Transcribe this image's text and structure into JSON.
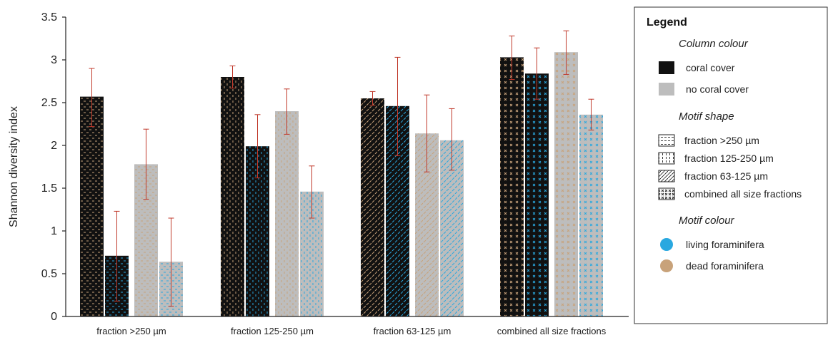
{
  "chart_data": {
    "type": "bar",
    "ylabel": "Shannon diversity index",
    "ylim": [
      0,
      3.5
    ],
    "yticks": [
      "0",
      "0.5",
      "1",
      "1.5",
      "2",
      "2.5",
      "3",
      "3.5"
    ],
    "categories": [
      "fraction >250 µm",
      "fraction 125-250 µm",
      "fraction 63-125 µm",
      "combined all size fractions"
    ],
    "series": [
      {
        "name": "coral cover, dead foraminifera",
        "values": [
          2.57,
          2.8,
          2.55,
          3.03
        ],
        "err_low": [
          2.22,
          2.67,
          2.47,
          2.77
        ],
        "err_high": [
          2.9,
          2.93,
          2.63,
          3.28
        ]
      },
      {
        "name": "coral cover, living foraminifera",
        "values": [
          0.71,
          1.99,
          2.46,
          2.84
        ],
        "err_low": [
          0.18,
          1.62,
          1.88,
          2.54
        ],
        "err_high": [
          1.23,
          2.36,
          3.03,
          3.14
        ]
      },
      {
        "name": "no coral cover, dead foraminifera",
        "values": [
          1.78,
          2.4,
          2.14,
          3.09
        ],
        "err_low": [
          1.37,
          2.13,
          1.69,
          2.83
        ],
        "err_high": [
          2.19,
          2.66,
          2.59,
          3.34
        ]
      },
      {
        "name": "no coral cover, living foraminifera",
        "values": [
          0.64,
          1.46,
          2.06,
          2.36
        ],
        "err_low": [
          0.12,
          1.15,
          1.71,
          2.18
        ],
        "err_high": [
          1.15,
          1.76,
          2.43,
          2.54
        ]
      }
    ],
    "motif_by_category": [
      "horizontal-dashes",
      "vertical-dashes",
      "diagonal-dashes",
      "crosses"
    ],
    "colors": {
      "coral_cover": "#111111",
      "no_coral_cover": "#bdbdbd",
      "living": "#29a8e0",
      "dead": "#c8a27a",
      "error_bar": "#c0392b"
    },
    "legend": {
      "title": "Legend",
      "placement": "right",
      "sections": [
        {
          "heading": "Column colour",
          "items": [
            {
              "label": "coral cover",
              "swatch": "coral_cover"
            },
            {
              "label": "no coral cover",
              "swatch": "no_coral_cover"
            }
          ]
        },
        {
          "heading": "Motif shape",
          "items": [
            {
              "label": "fraction >250 µm",
              "motif": "horizontal-dashes"
            },
            {
              "label": "fraction 125-250 µm",
              "motif": "vertical-dashes"
            },
            {
              "label": "fraction 63-125 µm",
              "motif": "diagonal-dashes"
            },
            {
              "label": "combined all size fractions",
              "motif": "crosses"
            }
          ]
        },
        {
          "heading": "Motif colour",
          "items": [
            {
              "label": "living foraminifera",
              "dot": "living"
            },
            {
              "label": "dead foraminifera",
              "dot": "dead"
            }
          ]
        }
      ]
    }
  }
}
